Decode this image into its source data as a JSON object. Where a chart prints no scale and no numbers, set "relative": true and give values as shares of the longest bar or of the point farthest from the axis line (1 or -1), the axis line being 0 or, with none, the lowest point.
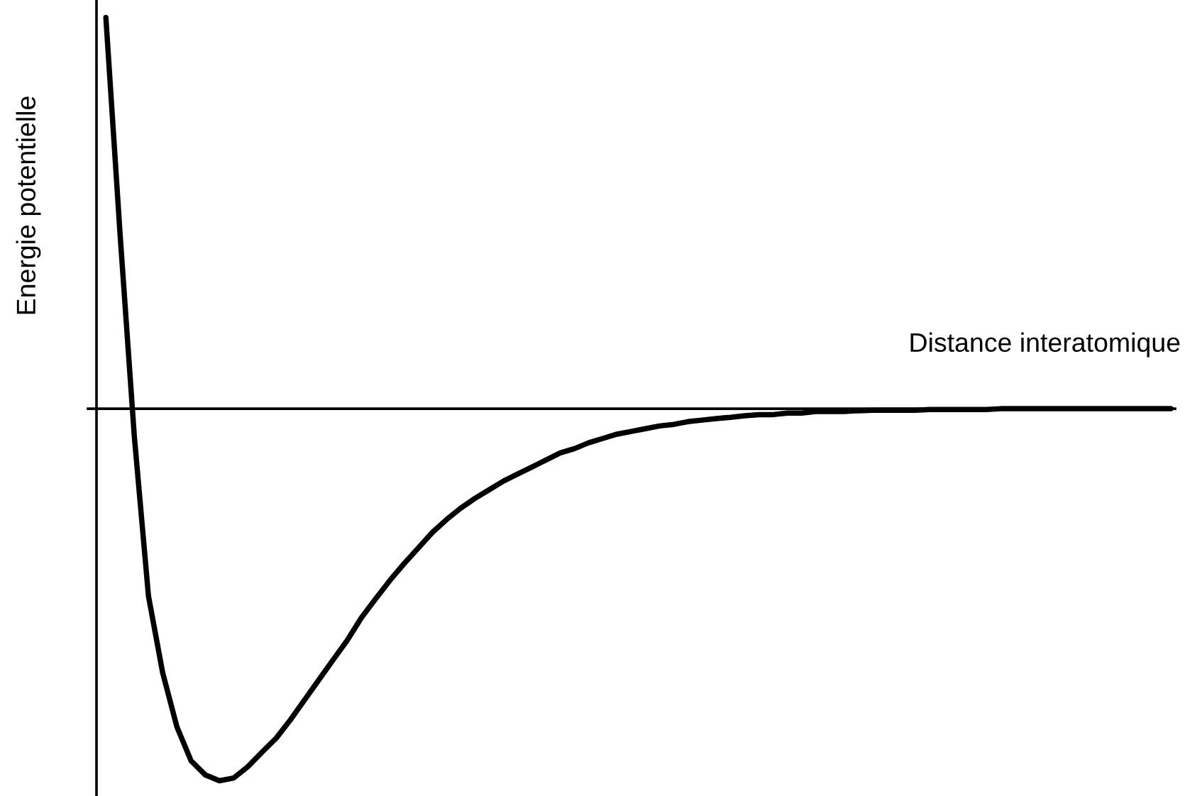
{
  "chart_data": {
    "type": "line",
    "relative": true,
    "xlabel": "Distance interatomique",
    "ylabel": "Energie potentielle",
    "categories": [
      null,
      null,
      null,
      null,
      null,
      null,
      null,
      null,
      null,
      null,
      null,
      null,
      null,
      null,
      null,
      null,
      null,
      null,
      null,
      null,
      null,
      null,
      null,
      null,
      null,
      null,
      null,
      null,
      null,
      null,
      null,
      null,
      null,
      null,
      null,
      null,
      null,
      null,
      null,
      null,
      null,
      null,
      null,
      null,
      null,
      null,
      null,
      null,
      null,
      null,
      null,
      null,
      null,
      null,
      null,
      null,
      null,
      null,
      null,
      null,
      null,
      null,
      null,
      null,
      null,
      null,
      null,
      null,
      null,
      null,
      null,
      null,
      null,
      null,
      null,
      null
    ],
    "series": [
      {
        "color": "#000000",
        "values": [
          1.0,
          0.446,
          -0.069,
          -0.479,
          -0.675,
          -0.813,
          -0.9,
          -0.936,
          -0.951,
          -0.944,
          -0.915,
          -0.878,
          -0.842,
          -0.795,
          -0.744,
          -0.693,
          -0.642,
          -0.592,
          -0.534,
          -0.486,
          -0.439,
          -0.396,
          -0.356,
          -0.316,
          -0.283,
          -0.254,
          -0.229,
          -0.207,
          -0.185,
          -0.167,
          -0.149,
          -0.131,
          -0.113,
          -0.102,
          -0.087,
          -0.076,
          -0.065,
          -0.058,
          -0.051,
          -0.044,
          -0.04,
          -0.033,
          -0.029,
          -0.025,
          -0.022,
          -0.018,
          -0.015,
          -0.015,
          -0.011,
          -0.011,
          -0.007,
          -0.007,
          -0.007,
          -0.005,
          -0.004,
          -0.004,
          -0.004,
          -0.004,
          -0.002,
          -0.002,
          -0.002,
          -0.002,
          -0.002,
          0,
          0,
          0,
          0,
          0,
          0,
          0,
          0,
          0,
          0,
          0,
          0,
          0
        ]
      }
    ]
  }
}
